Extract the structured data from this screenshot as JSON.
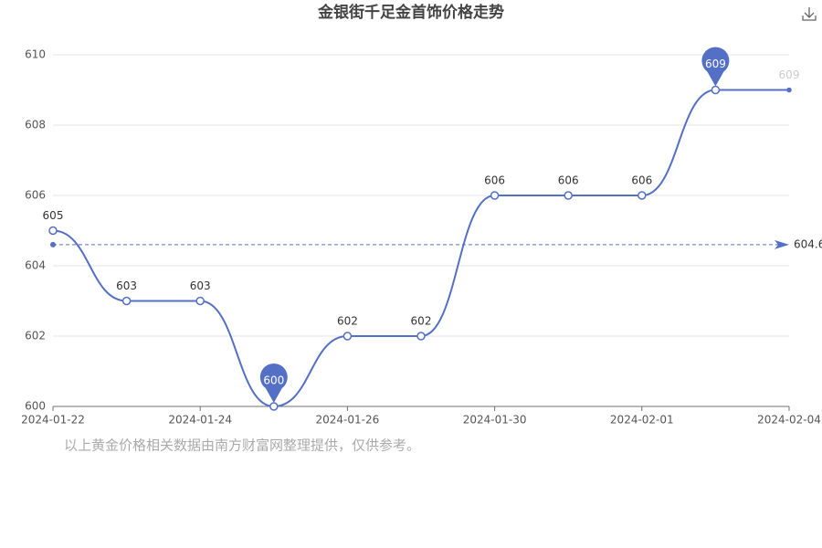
{
  "chart_data": {
    "type": "line",
    "title": "金银街千足金首饰价格走势",
    "categories": [
      "2024-01-22",
      null,
      "2024-01-24",
      null,
      "2024-01-26",
      null,
      "2024-01-30",
      null,
      "2024-02-01",
      null,
      "2024-02-04"
    ],
    "series": [
      {
        "name": "金银街千足金首饰",
        "color": "#5470c6",
        "values": [
          605,
          603,
          603,
          600,
          602,
          602,
          606,
          606,
          606,
          609,
          609
        ]
      }
    ],
    "average": 604.6,
    "ylim": [
      600,
      610
    ],
    "yticks": [
      600,
      602,
      604,
      606,
      608,
      610
    ],
    "grid": true,
    "note": "以上黄金价格相关数据由南方财富网整理提供，仅供参考。"
  }
}
